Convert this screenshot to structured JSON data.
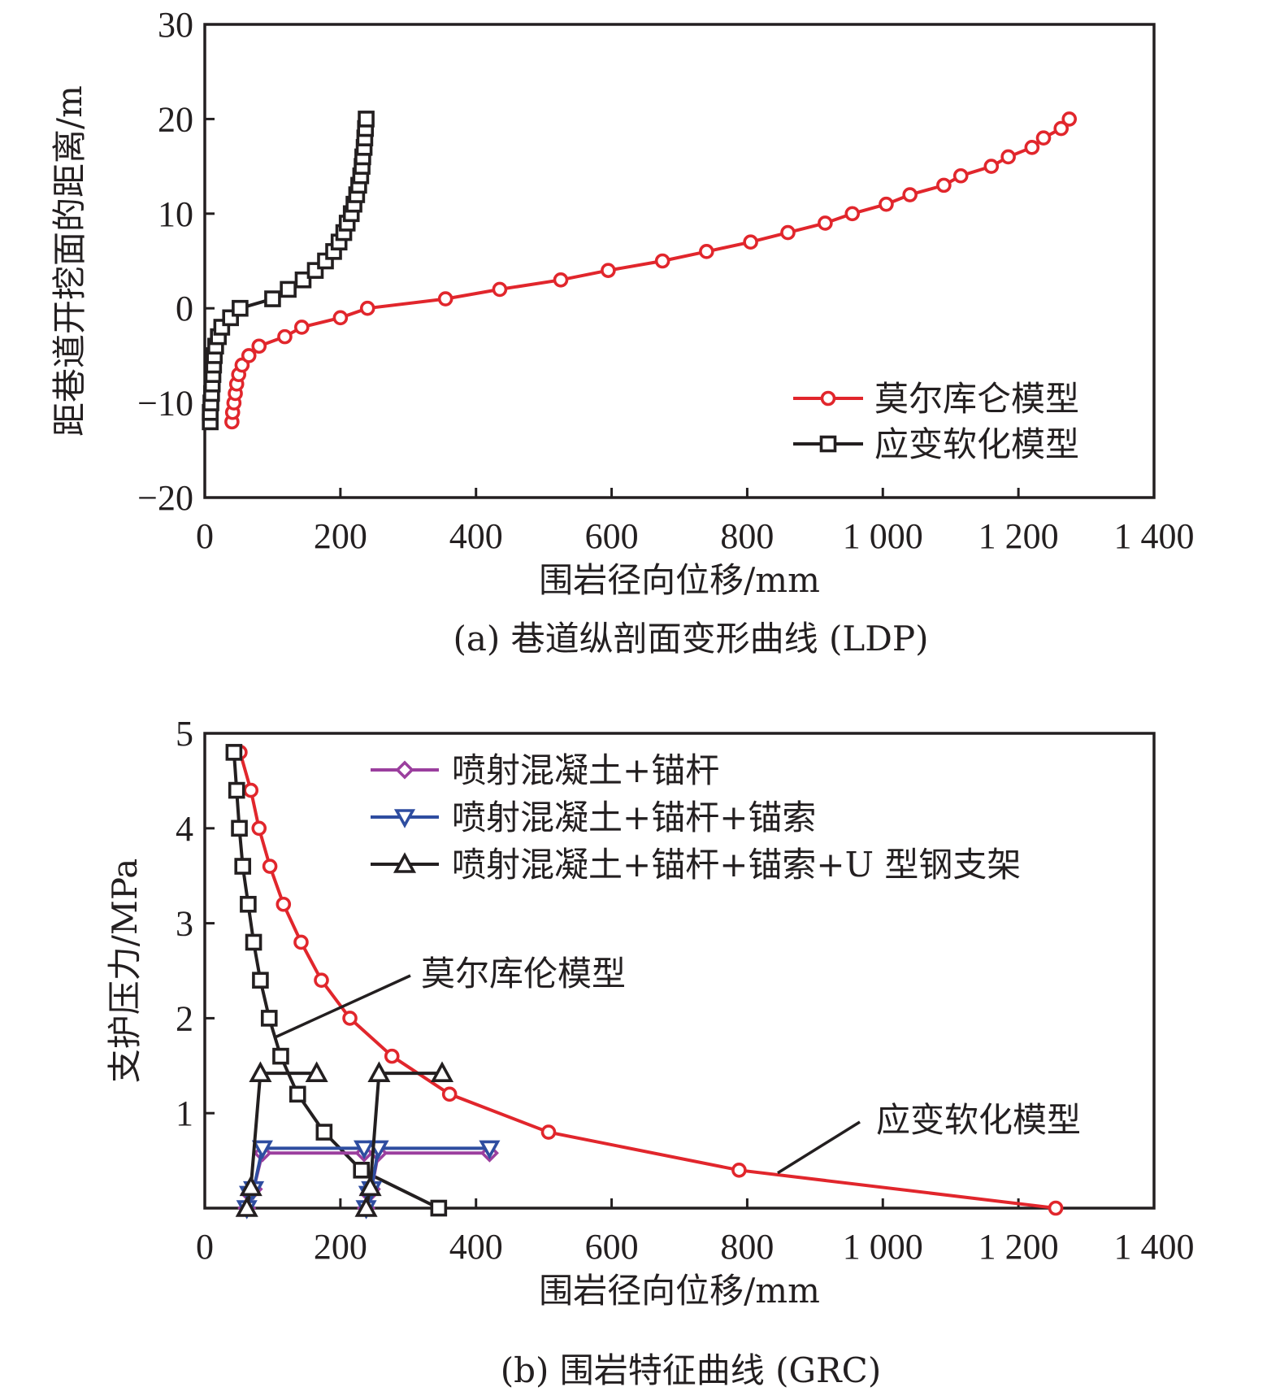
{
  "chart_data": [
    {
      "type": "line",
      "caption": "(a) 巷道纵剖面变形曲线 (LDP)",
      "xlabel": "围岩径向位移/mm",
      "ylabel": "距巷道开挖面的距离/m",
      "xlim": [
        0,
        1400
      ],
      "ylim": [
        -20,
        30
      ],
      "xticks": [
        0,
        200,
        400,
        600,
        800,
        1000,
        1200,
        1400
      ],
      "xtick_labels": [
        "0",
        "200",
        "400",
        "600",
        "800",
        "1 000",
        "1 200",
        "1 400"
      ],
      "yticks": [
        -20,
        -10,
        0,
        10,
        20,
        30
      ],
      "ytick_labels": [
        "−20",
        "−10",
        "0",
        "10",
        "20",
        "30"
      ],
      "legend_position": "lower-right",
      "series": [
        {
          "name": "莫尔库仑模型",
          "color": "#e1262c",
          "marker": "circle",
          "points": [
            [
              40,
              -12
            ],
            [
              41,
              -11
            ],
            [
              43,
              -10
            ],
            [
              45,
              -9
            ],
            [
              47,
              -8
            ],
            [
              50,
              -7
            ],
            [
              55,
              -6
            ],
            [
              65,
              -5
            ],
            [
              80,
              -4
            ],
            [
              118,
              -3
            ],
            [
              143,
              -2
            ],
            [
              200,
              -1
            ],
            [
              240,
              0
            ],
            [
              355,
              1
            ],
            [
              435,
              2
            ],
            [
              525,
              3
            ],
            [
              595,
              4
            ],
            [
              675,
              5
            ],
            [
              740,
              6
            ],
            [
              805,
              7
            ],
            [
              860,
              8
            ],
            [
              915,
              9
            ],
            [
              955,
              10
            ],
            [
              1005,
              11
            ],
            [
              1040,
              12
            ],
            [
              1090,
              13
            ],
            [
              1115,
              14
            ],
            [
              1160,
              15
            ],
            [
              1185,
              16
            ],
            [
              1220,
              17
            ],
            [
              1237,
              18
            ],
            [
              1263,
              19
            ],
            [
              1275,
              20
            ]
          ]
        },
        {
          "name": "应变软化模型",
          "color": "#231f20",
          "marker": "square",
          "points": [
            [
              8,
              -12
            ],
            [
              8,
              -11
            ],
            [
              9,
              -10
            ],
            [
              10,
              -9
            ],
            [
              11,
              -8
            ],
            [
              12,
              -7
            ],
            [
              13,
              -6
            ],
            [
              14,
              -5
            ],
            [
              16,
              -4
            ],
            [
              20,
              -3
            ],
            [
              25,
              -2
            ],
            [
              38,
              -1
            ],
            [
              52,
              0
            ],
            [
              100,
              1
            ],
            [
              123,
              2
            ],
            [
              145,
              3
            ],
            [
              163,
              4
            ],
            [
              178,
              5
            ],
            [
              190,
              6
            ],
            [
              198,
              7
            ],
            [
              205,
              8
            ],
            [
              210,
              9
            ],
            [
              216,
              10
            ],
            [
              220,
              11
            ],
            [
              224,
              12
            ],
            [
              227,
              13
            ],
            [
              230,
              14
            ],
            [
              232,
              15
            ],
            [
              233,
              16
            ],
            [
              235,
              17
            ],
            [
              236,
              18
            ],
            [
              237,
              19
            ],
            [
              238,
              20
            ]
          ]
        }
      ]
    },
    {
      "type": "line",
      "caption": "(b) 围岩特征曲线 (GRC)",
      "xlabel": "围岩径向位移/mm",
      "ylabel": "支护压力/MPa",
      "xlim": [
        0,
        1400
      ],
      "ylim": [
        0,
        5
      ],
      "xticks": [
        0,
        200,
        400,
        600,
        800,
        1000,
        1200,
        1400
      ],
      "xtick_labels": [
        "0",
        "200",
        "400",
        "600",
        "800",
        "1 000",
        "1 200",
        "1 400"
      ],
      "yticks": [
        1,
        2,
        3,
        4,
        5
      ],
      "ytick_labels": [
        "1",
        "2",
        "3",
        "4",
        "5"
      ],
      "legend_position": "top-right",
      "series": [
        {
          "name": "莫尔库伦模型曲线(红)",
          "color": "#e1262c",
          "marker": "circle",
          "in_legend": false,
          "points": [
            [
              52,
              4.8
            ],
            [
              68,
              4.4
            ],
            [
              80,
              4.0
            ],
            [
              96,
              3.6
            ],
            [
              116,
              3.2
            ],
            [
              142,
              2.8
            ],
            [
              172,
              2.4
            ],
            [
              214,
              2.0
            ],
            [
              276,
              1.6
            ],
            [
              361,
              1.2
            ],
            [
              507,
              0.8
            ],
            [
              788,
              0.4
            ],
            [
              1255,
              0
            ]
          ]
        },
        {
          "name": "应变软化模型曲线(黑)",
          "color": "#231f20",
          "marker": "square",
          "in_legend": false,
          "points": [
            [
              43,
              4.8
            ],
            [
              47,
              4.4
            ],
            [
              51,
              4.0
            ],
            [
              56,
              3.6
            ],
            [
              64,
              3.2
            ],
            [
              72,
              2.8
            ],
            [
              82,
              2.4
            ],
            [
              95,
              2.0
            ],
            [
              112,
              1.6
            ],
            [
              137,
              1.2
            ],
            [
              176,
              0.8
            ],
            [
              231,
              0.4
            ],
            [
              345,
              0
            ]
          ]
        },
        {
          "name": "喷射混凝土+锚杆",
          "color": "#9b3f9e",
          "marker": "diamond",
          "in_legend": true,
          "groups": [
            [
              [
                62,
                0
              ],
              [
                66,
                0.15
              ],
              [
                72,
                0.2
              ],
              [
                85,
                0.58
              ],
              [
                235,
                0.58
              ]
            ],
            [
              [
                238,
                0
              ],
              [
                242,
                0.15
              ],
              [
                246,
                0.2
              ],
              [
                256,
                0.58
              ],
              [
                420,
                0.58
              ]
            ]
          ]
        },
        {
          "name": "喷射混凝土+锚杆+锚索",
          "color": "#2e4da0",
          "marker": "triangle-down",
          "in_legend": true,
          "groups": [
            [
              [
                62,
                0
              ],
              [
                66,
                0.15
              ],
              [
                72,
                0.2
              ],
              [
                85,
                0.63
              ],
              [
                235,
                0.63
              ]
            ],
            [
              [
                238,
                0
              ],
              [
                242,
                0.15
              ],
              [
                246,
                0.2
              ],
              [
                256,
                0.63
              ],
              [
                420,
                0.63
              ]
            ]
          ]
        },
        {
          "name": "喷射混凝土+锚杆+锚索+U 型钢支架",
          "color": "#231f20",
          "marker": "triangle-up",
          "in_legend": true,
          "groups": [
            [
              [
                62,
                0
              ],
              [
                68,
                0.22
              ],
              [
                82,
                1.42
              ],
              [
                165,
                1.42
              ]
            ],
            [
              [
                238,
                0
              ],
              [
                244,
                0.22
              ],
              [
                257,
                1.42
              ],
              [
                350,
                1.42
              ]
            ]
          ]
        }
      ],
      "annotations": [
        {
          "text": "莫尔库伦模型",
          "points_to": [
            104,
            1.8
          ]
        },
        {
          "text": "应变软化模型",
          "points_to": [
            845,
            0.37
          ]
        }
      ]
    }
  ]
}
